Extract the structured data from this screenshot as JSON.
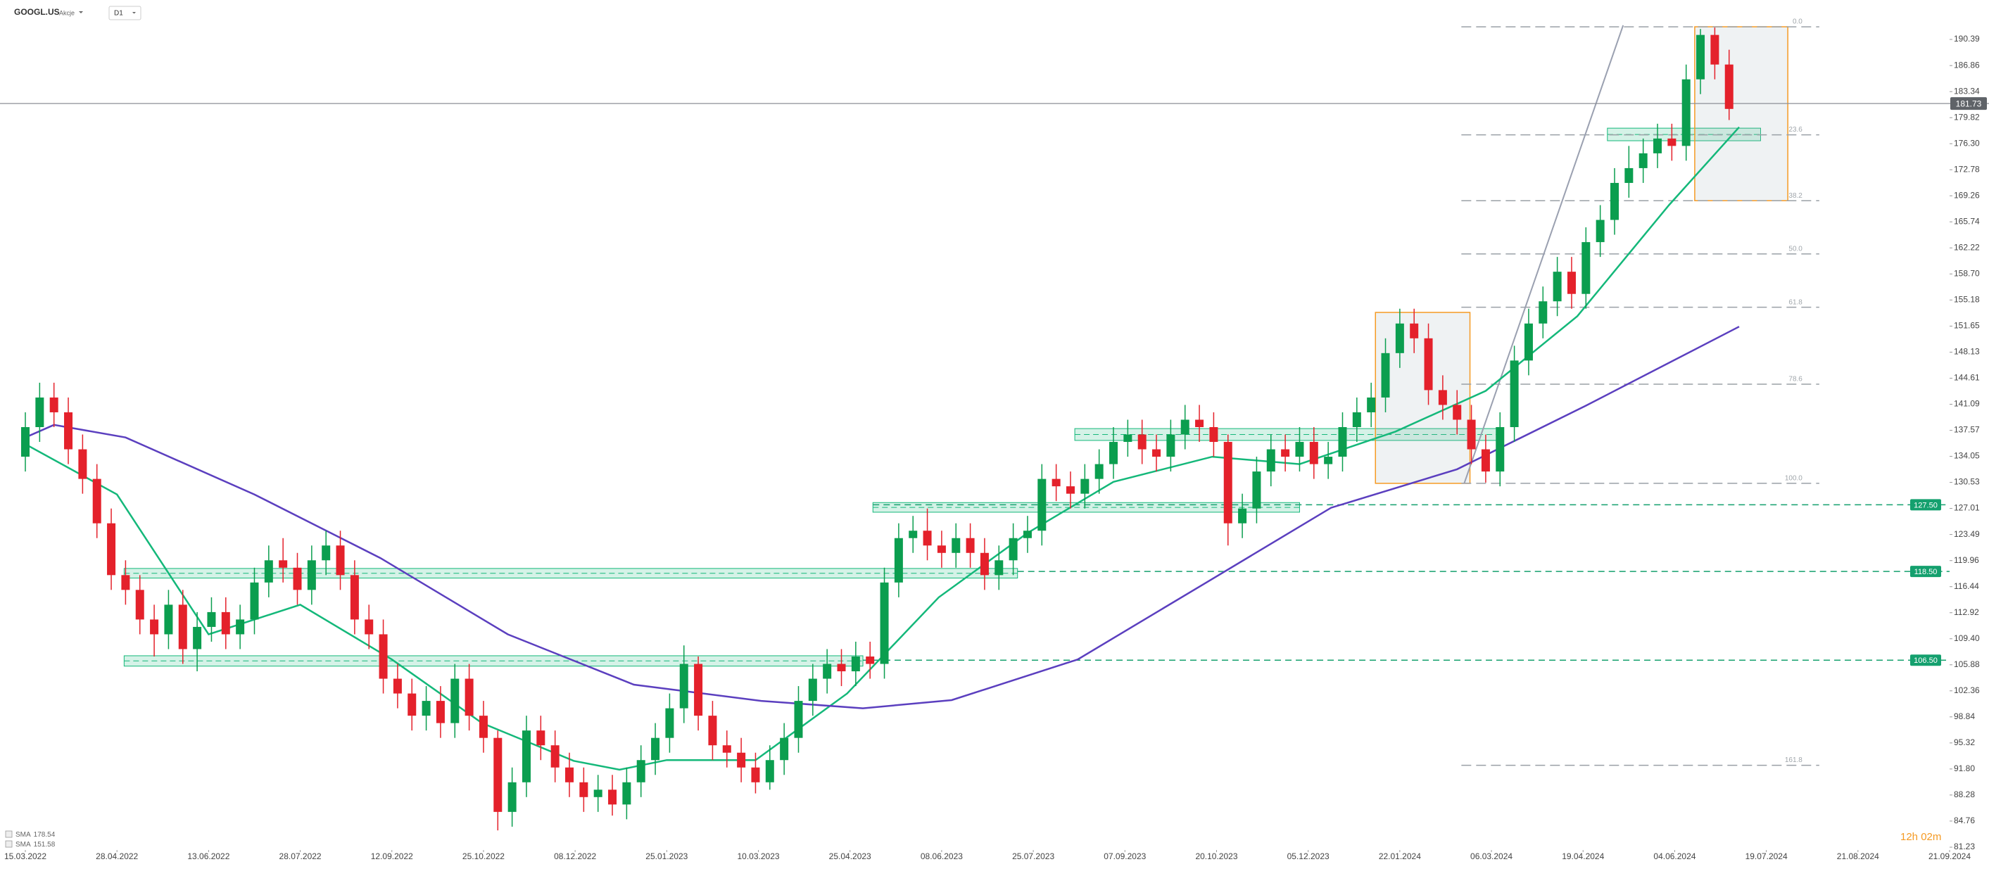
{
  "header": {
    "symbol": "GOOGL.US",
    "asset_type": "Akcje",
    "timeframe": "D1"
  },
  "chart_data": {
    "type": "candlestick",
    "up_color": "#0b9e4f",
    "down_color": "#e4212b",
    "x": [
      0,
      1,
      2,
      3,
      4,
      5,
      6,
      7,
      8,
      9,
      10,
      11,
      12,
      13,
      14,
      15,
      16,
      17,
      18,
      19,
      20,
      21,
      22,
      23,
      24,
      25,
      26,
      27,
      28,
      29,
      30,
      31,
      32,
      33,
      34,
      35,
      36,
      37,
      38,
      39,
      40,
      41,
      42,
      43,
      44,
      45,
      46,
      47,
      48,
      49,
      50,
      51,
      52,
      53,
      54,
      55,
      56,
      57,
      58,
      59,
      60,
      61,
      62,
      63,
      64,
      65,
      66,
      67,
      68,
      69,
      70,
      71,
      72,
      73,
      74,
      75,
      76,
      77,
      78,
      79,
      80,
      81,
      82,
      83,
      84,
      85,
      86,
      87,
      88,
      89,
      90,
      91,
      92,
      93,
      94,
      95,
      96,
      97,
      98,
      99,
      100,
      101,
      102,
      103,
      104,
      105,
      106,
      107,
      108,
      109,
      110,
      111,
      112,
      113,
      114,
      115,
      116,
      117,
      118,
      119
    ],
    "open": [
      134,
      138,
      142,
      140,
      135,
      131,
      125,
      118,
      116,
      112,
      110,
      114,
      108,
      111,
      113,
      110,
      112,
      117,
      120,
      119,
      116,
      120,
      122,
      118,
      112,
      110,
      104,
      102,
      99,
      101,
      98,
      104,
      99,
      96,
      86,
      90,
      97,
      95,
      92,
      90,
      88,
      89,
      87,
      90,
      93,
      96,
      100,
      106,
      99,
      95,
      94,
      92,
      90,
      93,
      96,
      101,
      104,
      106,
      105,
      107,
      106,
      117,
      123,
      124,
      122,
      121,
      123,
      121,
      118,
      120,
      123,
      124,
      131,
      130,
      129,
      131,
      133,
      136,
      137,
      135,
      134,
      137,
      139,
      138,
      136,
      125,
      127,
      132,
      135,
      134,
      136,
      133,
      134,
      138,
      140,
      142,
      148,
      152,
      150,
      143,
      141,
      139,
      135,
      132,
      138,
      147,
      152,
      155,
      159,
      156,
      163,
      166,
      171,
      173,
      175,
      177,
      176,
      185,
      191,
      187
    ],
    "high": [
      140,
      144,
      144,
      142,
      137,
      133,
      127,
      120,
      118,
      114,
      116,
      116,
      113,
      115,
      115,
      114,
      119,
      122,
      123,
      121,
      122,
      124,
      124,
      120,
      114,
      112,
      106,
      104,
      103,
      103,
      106,
      106,
      101,
      97,
      92,
      99,
      99,
      97,
      94,
      92,
      91,
      91,
      92,
      95,
      98,
      102,
      108.5,
      107,
      101,
      97,
      96,
      94,
      95,
      98,
      103,
      106,
      108,
      108,
      109,
      109,
      119,
      125,
      126,
      127,
      124,
      125,
      125,
      123,
      122,
      125,
      126,
      133,
      133,
      132,
      133,
      135,
      138,
      139,
      139,
      137,
      139,
      141,
      141,
      140,
      137,
      129,
      134,
      137,
      137,
      138,
      138,
      136,
      140,
      142,
      144,
      150,
      154,
      154,
      152,
      145,
      143,
      141,
      137,
      140,
      149,
      154,
      157,
      161,
      161,
      165,
      168,
      173,
      176,
      177,
      179,
      179,
      187,
      191.8,
      192,
      189
    ],
    "low": [
      132,
      136,
      138,
      133,
      129,
      123,
      116,
      114,
      110,
      107,
      108,
      106,
      105,
      109,
      108,
      108,
      110,
      115,
      117,
      114,
      114,
      118,
      116,
      110,
      108,
      102,
      100,
      97,
      97,
      96,
      96,
      97,
      94,
      83.5,
      84,
      88,
      93,
      90,
      88,
      86,
      86,
      85.5,
      85,
      88,
      91,
      94,
      98,
      97,
      93,
      92,
      90,
      88.5,
      89,
      91,
      94,
      99,
      102,
      103,
      103,
      104,
      104,
      115,
      121,
      120,
      119,
      119,
      119,
      116,
      116,
      118,
      121,
      122,
      128,
      127,
      127,
      129,
      131,
      134,
      133,
      132,
      132,
      135,
      136,
      134,
      122,
      123,
      125,
      130,
      132,
      132,
      131,
      131,
      132,
      136,
      138,
      140,
      146,
      148,
      141,
      139,
      137,
      133,
      130.5,
      130,
      136,
      145,
      150,
      153,
      154,
      154,
      161,
      164,
      169,
      171,
      173,
      174,
      174,
      183,
      185,
      179.5
    ],
    "close": [
      138,
      142,
      140,
      135,
      131,
      125,
      118,
      116,
      112,
      110,
      114,
      108,
      111,
      113,
      110,
      112,
      117,
      120,
      119,
      116,
      120,
      122,
      118,
      112,
      110,
      104,
      102,
      99,
      101,
      98,
      104,
      99,
      96,
      86,
      90,
      97,
      95,
      92,
      90,
      88,
      89,
      87,
      90,
      93,
      96,
      100,
      106,
      99,
      95,
      94,
      92,
      90,
      93,
      96,
      101,
      104,
      106,
      105,
      107,
      106,
      117,
      123,
      124,
      122,
      121,
      123,
      121,
      118,
      120,
      123,
      124,
      131,
      130,
      129,
      131,
      133,
      136,
      137,
      135,
      134,
      137,
      139,
      138,
      136,
      125,
      127,
      132,
      135,
      134,
      136,
      133,
      134,
      138,
      140,
      142,
      148,
      152,
      150,
      143,
      141,
      139,
      135,
      132,
      138,
      147,
      152,
      155,
      159,
      156,
      163,
      166,
      171,
      173,
      175,
      177,
      176,
      185,
      191,
      187,
      181
    ],
    "lines": [
      {
        "name": "SMA",
        "color": "#14b87a",
        "x": [
          0,
          6.4,
          12.8,
          19.2,
          25.6,
          31.9,
          38.3,
          41.5,
          44.8,
          51,
          57.4,
          63.8,
          70,
          76,
          82.9,
          89,
          95.7,
          102,
          108.4,
          114.8,
          119.7
        ],
        "values": [
          135.7,
          128.9,
          110,
          114,
          106.6,
          98,
          92.9,
          91.7,
          93,
          93,
          102,
          115,
          123.7,
          130.6,
          134,
          133,
          137.4,
          142.9,
          153,
          168,
          178.54
        ]
      },
      {
        "name": "SMA",
        "color": "#5b3fbf",
        "x": [
          0,
          2,
          7,
          16,
          24.8,
          33.7,
          42.5,
          51.4,
          58.5,
          64.7,
          73.5,
          82.4,
          91.2,
          100,
          109,
          119.7
        ],
        "values": [
          136.6,
          138.3,
          136.6,
          128.9,
          120.3,
          110,
          103.2,
          101,
          100,
          101.1,
          106.6,
          116.9,
          127.1,
          132.3,
          140.9,
          151.58
        ]
      }
    ],
    "current_price": 181.73,
    "levels": [
      {
        "value": 127.5,
        "label": "127.50",
        "x_start": 59.2
      },
      {
        "value": 118.5,
        "label": "118.50",
        "x_start": 69.3
      },
      {
        "value": 106.5,
        "label": "106.50",
        "x_start": 58.5
      }
    ],
    "zones": [
      {
        "x": [
          6.9,
          69.3
        ],
        "y": [
          117.6,
          118.9
        ]
      },
      {
        "x": [
          59.2,
          89.0
        ],
        "y": [
          126.5,
          127.8
        ]
      },
      {
        "x": [
          73.3,
          103.2
        ],
        "y": [
          136.2,
          137.8
        ]
      },
      {
        "x": [
          6.9,
          58.5
        ],
        "y": [
          105.7,
          107.1
        ]
      },
      {
        "x": [
          110.5,
          121.2
        ],
        "y": [
          176.7,
          178.4
        ]
      }
    ],
    "ranges": [
      {
        "x": [
          94.3,
          100.9
        ],
        "y": [
          130.4,
          153.5
        ]
      },
      {
        "x": [
          116.6,
          123.1
        ],
        "y": [
          168.6,
          192.1
        ]
      }
    ],
    "trend_line": {
      "x": [
        100.5,
        111.6
      ],
      "y": [
        130.4,
        192.3
      ]
    },
    "fib": {
      "x": [
        100.3,
        125.3
      ],
      "levels": [
        {
          "label": "0.0",
          "price": 192.1
        },
        {
          "label": "23.6",
          "price": 177.5
        },
        {
          "label": "38.2",
          "price": 168.6
        },
        {
          "label": "50.0",
          "price": 161.4
        },
        {
          "label": "61.8",
          "price": 154.2
        },
        {
          "label": "78.6",
          "price": 143.8
        },
        {
          "label": "100.0",
          "price": 130.4
        },
        {
          "label": "161.8",
          "price": 92.3
        }
      ]
    },
    "countdown": "12h 02m",
    "xlim": [
      -1.77,
      134.4
    ],
    "ylim": [
      80.85,
      195.72
    ],
    "xticks": [
      {
        "value": 0,
        "label": "15.03.2022"
      },
      {
        "value": 6.4,
        "label": "28.04.2022"
      },
      {
        "value": 12.8,
        "label": "13.06.2022"
      },
      {
        "value": 19.2,
        "label": "28.07.2022"
      },
      {
        "value": 25.6,
        "label": "12.09.2022"
      },
      {
        "value": 32,
        "label": "25.10.2022"
      },
      {
        "value": 38.4,
        "label": "08.12.2022"
      },
      {
        "value": 44.8,
        "label": "25.01.2023"
      },
      {
        "value": 51.2,
        "label": "10.03.2023"
      },
      {
        "value": 57.6,
        "label": "25.04.2023"
      },
      {
        "value": 64,
        "label": "08.06.2023"
      },
      {
        "value": 70.4,
        "label": "25.07.2023"
      },
      {
        "value": 76.8,
        "label": "07.09.2023"
      },
      {
        "value": 83.2,
        "label": "20.10.2023"
      },
      {
        "value": 89.6,
        "label": "05.12.2023"
      },
      {
        "value": 96,
        "label": "22.01.2024"
      },
      {
        "value": 102.4,
        "label": "06.03.2024"
      },
      {
        "value": 108.8,
        "label": "19.04.2024"
      },
      {
        "value": 115.2,
        "label": "04.06.2024"
      },
      {
        "value": 121.6,
        "label": "19.07.2024"
      },
      {
        "value": 128,
        "label": "21.08.2024"
      },
      {
        "value": 134.4,
        "label": "21.09.2024"
      }
    ],
    "yticks": [
      190.39,
      186.86,
      183.34,
      179.82,
      {
        "value": 176.3,
        "label": "176.30"
      },
      172.78,
      169.26,
      165.74,
      162.22,
      {
        "value": 158.7,
        "label": "158.70"
      },
      155.18,
      151.65,
      148.13,
      144.61,
      141.09,
      137.57,
      134.05,
      130.53,
      127.01,
      123.49,
      119.96,
      116.44,
      112.92,
      {
        "value": 109.4,
        "label": "109.40"
      },
      105.88,
      102.36,
      98.84,
      95.32,
      {
        "value": 91.8,
        "label": "91.80"
      },
      88.28,
      84.76,
      81.23
    ]
  }
}
